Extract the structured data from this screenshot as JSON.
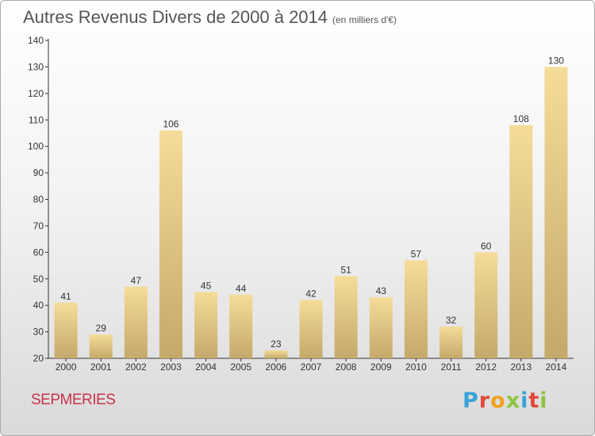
{
  "header": {
    "title": "Autres Revenus Divers de 2000 à 2014",
    "subtitle": "(en milliers d'€)"
  },
  "footer": {
    "commune": "SEPMERIES",
    "brand_letters": [
      "P",
      "r",
      "o",
      "x",
      "i",
      "t",
      "i"
    ],
    "brand_colors": [
      "#3aa3d8",
      "#e0473a",
      "#f0a21d",
      "#8cc43f",
      "#3aa3d8",
      "#e0473a",
      "#8cc43f"
    ]
  },
  "colors": {
    "bar_light": "#f5dc98",
    "bar_dark": "#c4a96a",
    "title": "#555555",
    "commune": "#c8344a"
  },
  "chart_data": {
    "type": "bar",
    "title": "Autres Revenus Divers de 2000 à 2014",
    "subtitle": "(en milliers d'€)",
    "xlabel": "",
    "ylabel": "",
    "categories": [
      "2000",
      "2001",
      "2002",
      "2003",
      "2004",
      "2005",
      "2006",
      "2007",
      "2008",
      "2009",
      "2010",
      "2011",
      "2012",
      "2013",
      "2014"
    ],
    "values": [
      41,
      29,
      47,
      106,
      45,
      44,
      23,
      42,
      51,
      43,
      57,
      32,
      60,
      108,
      130
    ],
    "ylim": [
      20,
      140
    ],
    "yticks": [
      20,
      30,
      40,
      50,
      60,
      70,
      80,
      90,
      100,
      110,
      120,
      130,
      140
    ],
    "grid": false,
    "data_labels": true
  }
}
